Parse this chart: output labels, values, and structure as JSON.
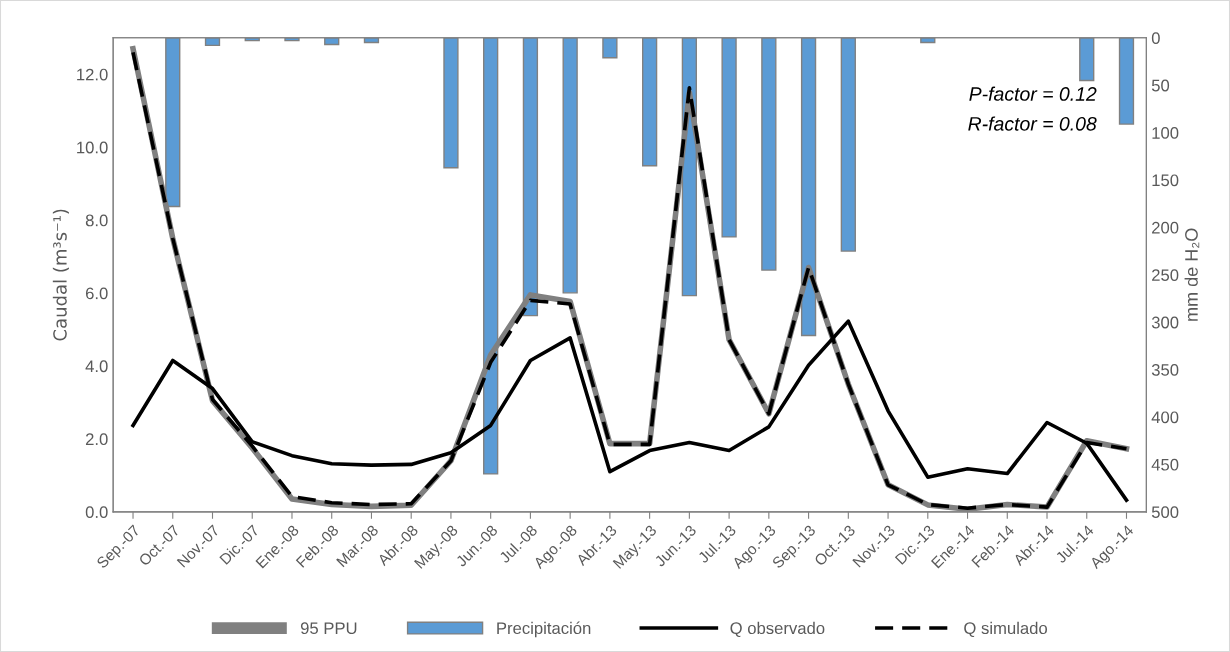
{
  "chart_data": {
    "type": "line",
    "categories": [
      "Sep.-07",
      "Oct.-07",
      "Nov.-07",
      "Dic.-07",
      "Ene.-08",
      "Feb.-08",
      "Mar.-08",
      "Abr.-08",
      "May.-08",
      "Jun.-08",
      "Jul.-08",
      "Ago.-08",
      "Abr.-13",
      "May.-13",
      "Jun.-13",
      "Jul.-13",
      "Ago.-13",
      "Sep.-13",
      "Oct.-13",
      "Nov.-13",
      "Dic.-13",
      "Ene.-14",
      "Feb.-14",
      "Abr.-14",
      "Jul.-14",
      "Ago.-14"
    ],
    "series": [
      {
        "name": "95 PPU",
        "color": "#808080",
        "values": [
          12.7,
          7.5,
          3.05,
          1.75,
          0.35,
          0.2,
          0.15,
          0.18,
          1.4,
          4.3,
          5.95,
          5.77,
          1.87,
          1.87,
          11.5,
          4.72,
          2.69,
          6.7,
          3.5,
          0.74,
          0.19,
          0.07,
          0.2,
          0.13,
          1.95,
          1.73
        ]
      },
      {
        "name": "Precipitación",
        "type": "bar",
        "axis": "y2",
        "color": "#5b9bd5",
        "values": [
          0,
          178,
          8,
          3,
          3,
          7,
          5,
          0,
          137,
          460,
          293,
          269,
          21,
          135,
          272,
          210,
          245,
          314,
          225,
          0,
          5,
          0,
          0,
          0,
          45,
          91
        ]
      },
      {
        "name": "Q observado",
        "color": "#000000",
        "values": [
          2.37,
          4.15,
          3.38,
          1.92,
          1.54,
          1.32,
          1.28,
          1.3,
          1.62,
          2.37,
          4.15,
          4.77,
          1.1,
          1.68,
          1.9,
          1.68,
          2.33,
          4.02,
          5.23,
          2.77,
          0.95,
          1.18,
          1.05,
          2.45,
          1.88,
          0.32
        ]
      },
      {
        "name": "Q simulado",
        "line_style": "dashed",
        "color": "#000000",
        "values": [
          12.6,
          7.5,
          3.08,
          1.8,
          0.42,
          0.25,
          0.2,
          0.22,
          1.4,
          4.1,
          5.8,
          5.7,
          1.85,
          1.85,
          11.63,
          4.72,
          2.69,
          6.7,
          3.5,
          0.74,
          0.2,
          0.1,
          0.2,
          0.13,
          1.9,
          1.73
        ]
      }
    ],
    "ylabel": "Caudal (m³s⁻¹)",
    "y2label": "mm de H₂O",
    "ylim": [
      0,
      13
    ],
    "yticks": [
      {
        "value": 0,
        "label": "0.0"
      },
      {
        "value": 2,
        "label": "2.0"
      },
      {
        "value": 4,
        "label": "4.0"
      },
      {
        "value": 6,
        "label": "6.0"
      },
      {
        "value": 8,
        "label": "8.0"
      },
      {
        "value": 10,
        "label": "10.0"
      },
      {
        "value": 12,
        "label": "12.0"
      }
    ],
    "y2lim": [
      500,
      0
    ],
    "y2ticks": [
      0,
      50,
      100,
      150,
      200,
      250,
      300,
      350,
      400,
      450,
      500
    ],
    "annotations": [
      "P-factor = 0.12",
      "R-factor = 0.08"
    ],
    "legend": "bottom"
  }
}
